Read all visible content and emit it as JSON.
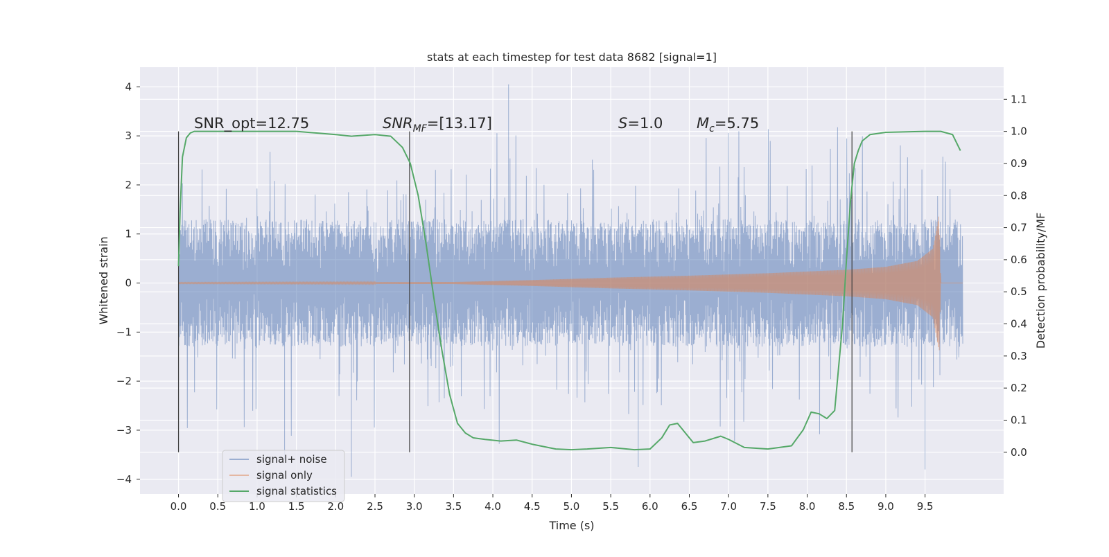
{
  "chart_data": {
    "type": "line",
    "title": "stats at each timestep for test data 8682 [signal=1]",
    "xlabel": "Time (s)",
    "ylabel_left": "Whitened strain",
    "ylabel_right": "Detection probability/MF",
    "xlim": [
      -0.49,
      10.5
    ],
    "ylim_left": [
      -4.3,
      4.4
    ],
    "ylim_right": [
      -0.13,
      1.2
    ],
    "x_ticks": [
      "0.0",
      "0.5",
      "1.0",
      "1.5",
      "2.0",
      "2.5",
      "3.0",
      "3.5",
      "4.0",
      "4.5",
      "5.0",
      "5.5",
      "6.0",
      "6.5",
      "7.0",
      "7.5",
      "8.0",
      "8.5",
      "9.0",
      "9.5"
    ],
    "y_left_ticks": [
      "4",
      "3",
      "2",
      "1",
      "0",
      "−1",
      "−2",
      "−3",
      "−4"
    ],
    "y_right_ticks": [
      "1.1",
      "1.0",
      "0.9",
      "0.8",
      "0.7",
      "0.6",
      "0.5",
      "0.4",
      "0.3",
      "0.2",
      "0.1",
      "0.0"
    ],
    "grid": true,
    "legend_placement": "lower-left",
    "annotations": {
      "snr_opt": "SNR_opt=12.75",
      "snr_mf_base": "SNR",
      "snr_mf_sub": "MF",
      "snr_mf_value": "=[13.17]",
      "s_label": "S",
      "s_value": "=1.0",
      "mc_base": "M",
      "mc_sub": "c",
      "mc_value": "=5.75"
    },
    "vertical_markers": [
      0.0,
      2.94,
      8.57
    ],
    "series": [
      {
        "name": "signal+ noise",
        "color": "#4c72b0",
        "kind": "noise",
        "x_range": [
          0.0,
          9.98
        ],
        "typical_amplitude": 1.3,
        "max": 4.05,
        "min": -3.95
      },
      {
        "name": "signal only",
        "color": "#dd8452",
        "kind": "chirp",
        "x_range": [
          0.0,
          9.98
        ],
        "envelope": {
          "x": [
            0.0,
            3.5,
            4.5,
            5.5,
            6.5,
            7.5,
            8.5,
            9.0,
            9.4,
            9.6,
            9.68,
            9.7
          ],
          "y": [
            0.01,
            0.02,
            0.06,
            0.11,
            0.15,
            0.2,
            0.27,
            0.33,
            0.45,
            0.7,
            1.4,
            0.0
          ]
        }
      },
      {
        "name": "signal statistics",
        "color": "#55a868",
        "kind": "line",
        "axis": "right",
        "x": [
          0.0,
          0.02,
          0.05,
          0.1,
          0.15,
          0.2,
          0.3,
          0.5,
          1.0,
          1.5,
          2.0,
          2.2,
          2.5,
          2.7,
          2.85,
          2.95,
          3.05,
          3.15,
          3.25,
          3.35,
          3.45,
          3.55,
          3.65,
          3.75,
          3.9,
          4.1,
          4.3,
          4.5,
          4.8,
          5.0,
          5.2,
          5.5,
          5.8,
          6.0,
          6.15,
          6.25,
          6.35,
          6.45,
          6.55,
          6.7,
          6.9,
          7.0,
          7.2,
          7.5,
          7.8,
          7.95,
          8.05,
          8.15,
          8.25,
          8.35,
          8.45,
          8.5,
          8.55,
          8.6,
          8.65,
          8.7,
          8.8,
          9.0,
          9.5,
          9.7,
          9.85,
          9.95
        ],
        "y": [
          0.58,
          0.75,
          0.92,
          0.98,
          0.995,
          1.0,
          1.0,
          1.0,
          1.0,
          1.0,
          0.99,
          0.985,
          0.99,
          0.985,
          0.95,
          0.9,
          0.8,
          0.65,
          0.48,
          0.32,
          0.18,
          0.09,
          0.06,
          0.045,
          0.04,
          0.035,
          0.038,
          0.025,
          0.01,
          0.008,
          0.01,
          0.015,
          0.008,
          0.01,
          0.045,
          0.085,
          0.09,
          0.06,
          0.03,
          0.035,
          0.05,
          0.04,
          0.015,
          0.01,
          0.02,
          0.07,
          0.125,
          0.12,
          0.105,
          0.13,
          0.4,
          0.6,
          0.78,
          0.9,
          0.94,
          0.97,
          0.99,
          0.997,
          1.0,
          1.0,
          0.99,
          0.94
        ]
      }
    ]
  }
}
